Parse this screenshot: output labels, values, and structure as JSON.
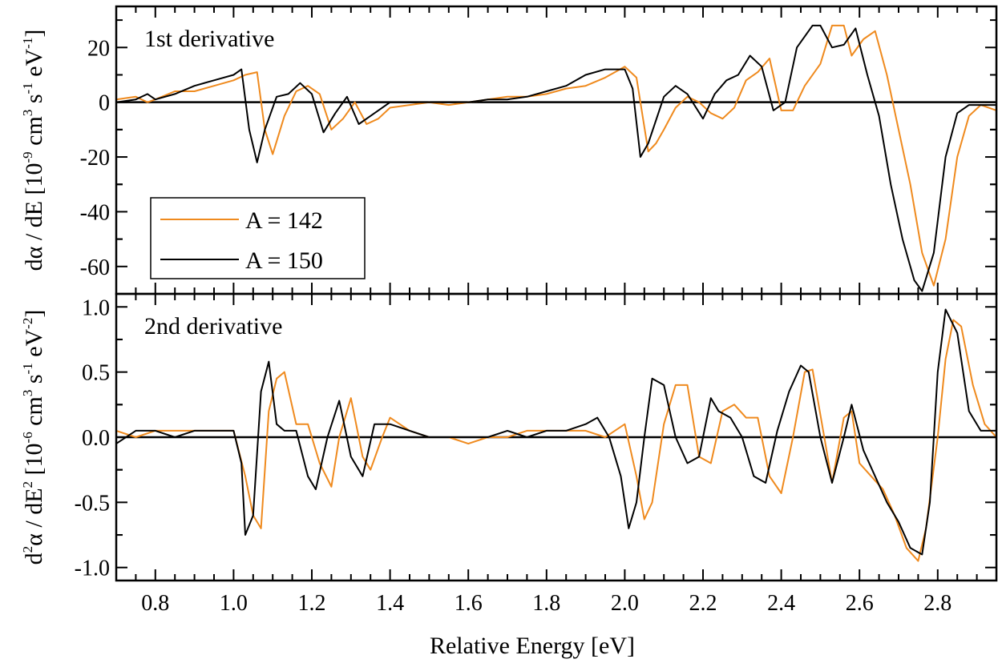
{
  "chart_data": [
    {
      "type": "line",
      "panel_label": "1st derivative",
      "ylabel": "dα / dE [10⁻⁹ cm³ s⁻¹ eV⁻¹]",
      "ylabel_parts": {
        "base": "dα / dE [10",
        "e1": "-9",
        "mid1": " cm",
        "e2": "3",
        "mid2": " s",
        "e3": "-1",
        "mid3": " eV",
        "e4": "-1",
        "end": "]"
      },
      "xlim": [
        0.7,
        2.95
      ],
      "ylim": [
        -70,
        35
      ],
      "yticks": [
        -60,
        -40,
        -20,
        0,
        20
      ],
      "ytick_labels": [
        "-60",
        "-40",
        "-20",
        "0",
        "20"
      ],
      "zero_line": true,
      "legend_position": "lower-left",
      "series": [
        {
          "name": "A = 142",
          "color": "#ef8a1e",
          "x": [
            0.7,
            0.75,
            0.78,
            0.8,
            0.85,
            0.9,
            0.95,
            1.0,
            1.03,
            1.06,
            1.08,
            1.1,
            1.13,
            1.16,
            1.19,
            1.22,
            1.25,
            1.28,
            1.31,
            1.34,
            1.37,
            1.4,
            1.45,
            1.5,
            1.55,
            1.6,
            1.65,
            1.7,
            1.75,
            1.8,
            1.85,
            1.9,
            1.95,
            2.0,
            2.03,
            2.06,
            2.08,
            2.1,
            2.13,
            2.16,
            2.19,
            2.22,
            2.25,
            2.28,
            2.31,
            2.34,
            2.37,
            2.4,
            2.43,
            2.46,
            2.5,
            2.53,
            2.56,
            2.58,
            2.61,
            2.64,
            2.67,
            2.7,
            2.73,
            2.76,
            2.79,
            2.82,
            2.85,
            2.88,
            2.91,
            2.95
          ],
          "y": [
            1,
            2,
            0,
            1,
            4,
            4,
            6,
            8,
            10,
            11,
            -10,
            -19,
            -5,
            4,
            6,
            3,
            -10,
            -6,
            0,
            -8,
            -6,
            -2,
            -1,
            0,
            -1,
            0,
            1,
            2,
            2,
            3,
            5,
            6,
            9,
            13,
            9,
            -18,
            -15,
            -10,
            -2,
            2,
            0,
            -4,
            -6,
            -2,
            8,
            11,
            16,
            -3,
            -3,
            6,
            14,
            28,
            28,
            17,
            23,
            26,
            10,
            -10,
            -30,
            -55,
            -67,
            -50,
            -20,
            -5,
            -1,
            -3
          ]
        },
        {
          "name": "A = 150",
          "color": "#000000",
          "x": [
            0.7,
            0.75,
            0.78,
            0.8,
            0.85,
            0.9,
            0.95,
            1.0,
            1.02,
            1.04,
            1.06,
            1.08,
            1.11,
            1.14,
            1.17,
            1.2,
            1.23,
            1.26,
            1.29,
            1.32,
            1.35,
            1.4,
            1.45,
            1.5,
            1.55,
            1.6,
            1.65,
            1.7,
            1.75,
            1.8,
            1.85,
            1.9,
            1.95,
            2.0,
            2.02,
            2.04,
            2.06,
            2.1,
            2.13,
            2.16,
            2.2,
            2.23,
            2.26,
            2.29,
            2.32,
            2.35,
            2.38,
            2.41,
            2.44,
            2.48,
            2.5,
            2.53,
            2.56,
            2.59,
            2.62,
            2.65,
            2.68,
            2.71,
            2.74,
            2.76,
            2.79,
            2.82,
            2.85,
            2.88,
            2.91,
            2.95
          ],
          "y": [
            0,
            1,
            3,
            1,
            3,
            6,
            8,
            10,
            12,
            -10,
            -22,
            -10,
            2,
            3,
            7,
            3,
            -11,
            -4,
            2,
            -8,
            -5,
            0,
            0,
            0,
            0,
            0,
            1,
            1,
            2,
            4,
            6,
            10,
            12,
            12,
            5,
            -20,
            -15,
            2,
            6,
            3,
            -6,
            3,
            8,
            10,
            17,
            13,
            -3,
            0,
            20,
            28,
            28,
            20,
            21,
            27,
            10,
            -5,
            -30,
            -50,
            -65,
            -69,
            -55,
            -20,
            -4,
            -1,
            -1,
            -1
          ]
        }
      ]
    },
    {
      "type": "line",
      "panel_label": "2nd derivative",
      "ylabel": "d²α / dE² [10⁻⁶ cm³ s⁻¹ eV⁻²]",
      "ylabel_parts": {
        "base": "d",
        "e0": "2",
        "b2": "α / dE",
        "e0b": "2",
        "b3": " [10",
        "e1": "-6",
        "mid1": " cm",
        "e2": "3",
        "mid2": " s",
        "e3": "-1",
        "mid3": " eV",
        "e4": "-2",
        "end": "]"
      },
      "xlabel": "Relative Energy [eV]",
      "xlim": [
        0.7,
        2.95
      ],
      "ylim": [
        -1.1,
        1.1
      ],
      "xticks": [
        0.8,
        1.0,
        1.2,
        1.4,
        1.6,
        1.8,
        2.0,
        2.2,
        2.4,
        2.6,
        2.8
      ],
      "xtick_labels": [
        "0.8",
        "1.0",
        "1.2",
        "1.4",
        "1.6",
        "1.8",
        "2.0",
        "2.2",
        "2.4",
        "2.6",
        "2.8"
      ],
      "yticks": [
        -1.0,
        -0.5,
        0.0,
        0.5,
        1.0
      ],
      "ytick_labels": [
        "-1.0",
        "-0.5",
        "0.0",
        "0.5",
        "1.0"
      ],
      "zero_line": true,
      "series": [
        {
          "name": "A = 142",
          "color": "#ef8a1e",
          "x": [
            0.7,
            0.75,
            0.8,
            0.85,
            0.9,
            0.95,
            1.0,
            1.03,
            1.05,
            1.07,
            1.09,
            1.11,
            1.13,
            1.16,
            1.19,
            1.22,
            1.25,
            1.27,
            1.3,
            1.33,
            1.35,
            1.38,
            1.4,
            1.45,
            1.5,
            1.55,
            1.6,
            1.65,
            1.7,
            1.75,
            1.8,
            1.85,
            1.9,
            1.95,
            2.0,
            2.03,
            2.05,
            2.07,
            2.1,
            2.13,
            2.16,
            2.19,
            2.22,
            2.25,
            2.28,
            2.31,
            2.34,
            2.37,
            2.4,
            2.43,
            2.46,
            2.48,
            2.51,
            2.53,
            2.56,
            2.58,
            2.6,
            2.63,
            2.66,
            2.69,
            2.72,
            2.75,
            2.77,
            2.8,
            2.82,
            2.84,
            2.86,
            2.89,
            2.92,
            2.95
          ],
          "y": [
            0.05,
            0.0,
            0.05,
            0.05,
            0.05,
            0.05,
            0.05,
            -0.3,
            -0.6,
            -0.7,
            0.2,
            0.45,
            0.5,
            0.1,
            0.1,
            -0.2,
            -0.38,
            0.0,
            0.3,
            -0.15,
            -0.25,
            0.0,
            0.15,
            0.05,
            0.0,
            0.0,
            -0.05,
            0.0,
            0.0,
            0.05,
            0.05,
            0.05,
            0.05,
            0.0,
            0.1,
            -0.3,
            -0.63,
            -0.5,
            0.1,
            0.4,
            0.4,
            -0.15,
            -0.2,
            0.2,
            0.25,
            0.15,
            0.15,
            -0.3,
            -0.43,
            0.0,
            0.5,
            0.52,
            0.0,
            -0.35,
            0.15,
            0.2,
            -0.2,
            -0.3,
            -0.4,
            -0.6,
            -0.85,
            -0.95,
            -0.7,
            0.0,
            0.6,
            0.9,
            0.85,
            0.4,
            0.1,
            0.0
          ]
        },
        {
          "name": "A = 150",
          "color": "#000000",
          "x": [
            0.7,
            0.75,
            0.8,
            0.85,
            0.9,
            0.95,
            1.0,
            1.02,
            1.03,
            1.05,
            1.07,
            1.09,
            1.11,
            1.13,
            1.16,
            1.19,
            1.21,
            1.24,
            1.27,
            1.3,
            1.33,
            1.36,
            1.4,
            1.45,
            1.5,
            1.55,
            1.6,
            1.65,
            1.7,
            1.75,
            1.8,
            1.85,
            1.9,
            1.93,
            1.96,
            1.99,
            2.01,
            2.03,
            2.05,
            2.07,
            2.1,
            2.13,
            2.16,
            2.19,
            2.22,
            2.24,
            2.27,
            2.3,
            2.33,
            2.36,
            2.39,
            2.42,
            2.45,
            2.47,
            2.5,
            2.53,
            2.56,
            2.58,
            2.61,
            2.64,
            2.67,
            2.7,
            2.73,
            2.76,
            2.78,
            2.8,
            2.82,
            2.85,
            2.88,
            2.91,
            2.95
          ],
          "y": [
            -0.05,
            0.05,
            0.05,
            0.0,
            0.05,
            0.05,
            0.05,
            -0.2,
            -0.75,
            -0.6,
            0.35,
            0.58,
            0.1,
            0.05,
            0.05,
            -0.3,
            -0.4,
            0.0,
            0.28,
            -0.15,
            -0.3,
            0.1,
            0.1,
            0.05,
            0.0,
            0.0,
            0.0,
            0.0,
            0.05,
            0.0,
            0.05,
            0.05,
            0.1,
            0.15,
            0.0,
            -0.3,
            -0.7,
            -0.5,
            0.0,
            0.45,
            0.4,
            0.0,
            -0.2,
            -0.15,
            0.3,
            0.2,
            0.15,
            0.0,
            -0.3,
            -0.35,
            0.05,
            0.35,
            0.55,
            0.5,
            0.0,
            -0.35,
            0.0,
            0.25,
            -0.1,
            -0.3,
            -0.5,
            -0.65,
            -0.85,
            -0.9,
            -0.5,
            0.5,
            0.98,
            0.8,
            0.2,
            0.05,
            0.05
          ]
        }
      ]
    }
  ]
}
